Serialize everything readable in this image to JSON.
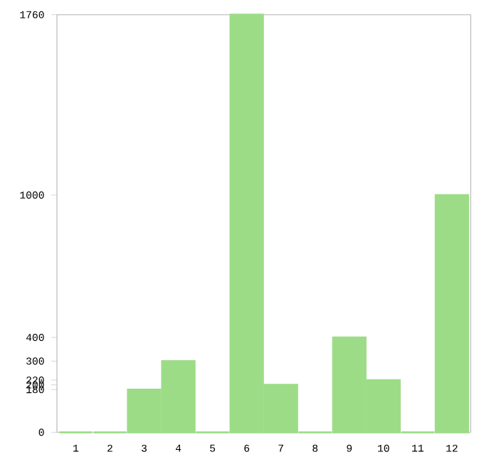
{
  "chart_data": {
    "type": "bar",
    "categories": [
      "1",
      "2",
      "3",
      "4",
      "5",
      "6",
      "7",
      "8",
      "9",
      "10",
      "11",
      "12"
    ],
    "values": [
      0,
      0,
      180,
      300,
      0,
      1760,
      200,
      0,
      400,
      220,
      0,
      1000
    ],
    "color": "#9ddc87",
    "ylim": [
      0,
      1760
    ],
    "yticks": [
      0,
      180,
      200,
      220,
      300,
      400,
      1000,
      1760
    ]
  }
}
